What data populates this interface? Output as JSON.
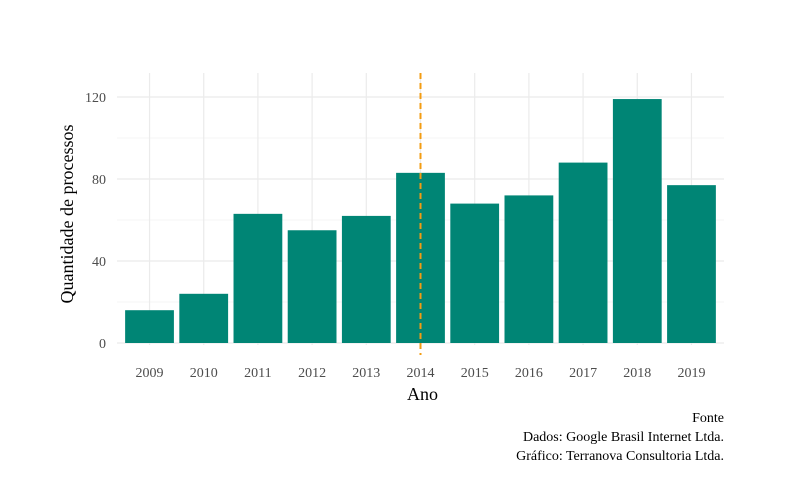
{
  "chart_data": {
    "type": "bar",
    "categories": [
      "2009",
      "2010",
      "2011",
      "2012",
      "2013",
      "2014",
      "2015",
      "2016",
      "2017",
      "2018",
      "2019"
    ],
    "values": [
      16,
      24,
      63,
      55,
      62,
      83,
      68,
      72,
      88,
      119,
      77
    ],
    "xlabel": "Ano",
    "ylabel": "Quantidade de processos",
    "ylim": [
      0,
      131
    ],
    "yticks": [
      0,
      40,
      80,
      120
    ],
    "grid": true,
    "reference_line": {
      "x": "2014",
      "style": "dashed"
    },
    "colors": {
      "bar": "#008575",
      "reference_line": "#f39c12",
      "grid": "#ebebeb"
    }
  },
  "caption": {
    "line1": "Fonte",
    "line2": "Dados: Google Brasil Internet Ltda.",
    "line3": "Gráfico: Terranova Consultoria Ltda."
  }
}
